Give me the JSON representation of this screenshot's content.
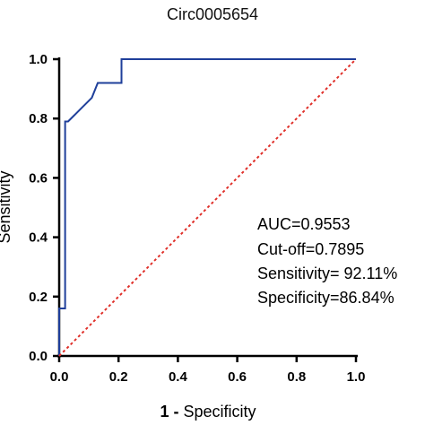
{
  "chart_data": {
    "type": "line",
    "title": "Circ0005654",
    "xlabel_bold": "1 -",
    "xlabel_rest": " Specificity",
    "ylabel": "Sensitivity",
    "xlim": [
      0,
      1
    ],
    "ylim": [
      0,
      1
    ],
    "x_ticks": [
      "0.0",
      "0.2",
      "0.4",
      "0.6",
      "0.8",
      "1.0"
    ],
    "y_ticks": [
      "0.0",
      "0.2",
      "0.4",
      "0.6",
      "0.8",
      "1.0"
    ],
    "grid": false,
    "series": [
      {
        "color": "#1f3f9a",
        "style": "solid",
        "x": [
          0,
          0,
          0.02,
          0.02,
          0.03,
          0.03,
          0.05,
          0.08,
          0.11,
          0.13,
          0.21,
          0.21,
          0.21,
          0.5,
          1.0
        ],
        "y": [
          0,
          0.16,
          0.16,
          0.79,
          0.79,
          0.79,
          0.81,
          0.84,
          0.87,
          0.92,
          0.92,
          0.97,
          1.0,
          1.0,
          1.0
        ]
      },
      {
        "color": "#e0302a",
        "style": "dashed",
        "x": [
          0,
          1
        ],
        "y": [
          0,
          1
        ]
      }
    ],
    "annotations": [
      "AUC=0.9553",
      "Cut-off=0.7895",
      "Sensitivity= 92.11%",
      "Specificity=86.84%"
    ]
  }
}
